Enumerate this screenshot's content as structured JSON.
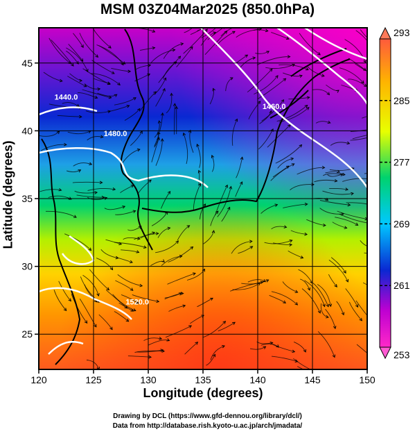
{
  "title": "MSM 03Z04Mar2025 (850.0hPa)",
  "xlabel": "Longitude (degrees)",
  "ylabel": "Latitude  (degrees)",
  "credits": {
    "line1": "Drawing by DCL (https://www.gfd-dennou.org/library/dcl/)",
    "line2": "Data from http://database.rish.kyoto-u.ac.jp/arch/jmadata/"
  },
  "chart_data": {
    "type": "heatmap",
    "x_ticks": [
      120,
      125,
      130,
      135,
      140,
      145,
      150
    ],
    "y_ticks": [
      25,
      30,
      35,
      40,
      45
    ],
    "xlim": [
      120,
      150
    ],
    "ylim": [
      22.4,
      47.6
    ],
    "grid": true,
    "colorbar": {
      "ticks": [
        293,
        285,
        277,
        269,
        261,
        253
      ],
      "colors": [
        "#ff5a3c",
        "#ffb400",
        "#e8ff00",
        "#00d26e",
        "#00c8ff",
        "#0a28d2",
        "#be00d2",
        "#ff28c8"
      ]
    },
    "contour_labels": [
      {
        "text": "1480.0",
        "lon": 127.0,
        "lat": 39.6
      },
      {
        "text": "1440.0",
        "lon": 122.5,
        "lat": 42.3
      },
      {
        "text": "1460.0",
        "lon": 141.5,
        "lat": 41.6
      },
      {
        "text": "1520.0",
        "lon": 129.0,
        "lat": 27.2
      }
    ]
  }
}
